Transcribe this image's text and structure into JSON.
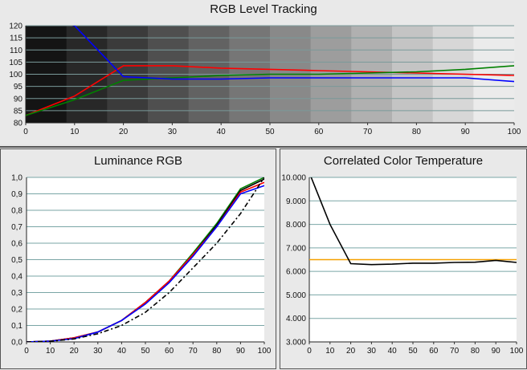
{
  "charts": {
    "top": {
      "title": "RGB Level Tracking",
      "chart_data": {
        "type": "line",
        "x": [
          0,
          10,
          20,
          30,
          40,
          50,
          60,
          70,
          80,
          90,
          100
        ],
        "xlim": [
          0,
          100
        ],
        "ylim": [
          80,
          120
        ],
        "x_ticks": [
          "0",
          "10",
          "20",
          "30",
          "40",
          "50",
          "60",
          "70",
          "80",
          "90",
          "100"
        ],
        "y_ticks": [
          "80",
          "85",
          "90",
          "95",
          "100",
          "105",
          "110",
          "115",
          "120"
        ],
        "grid": true,
        "background": "grayscale-steps",
        "series": [
          {
            "color": "#ff0000",
            "values": [
              83,
              91,
              103.5,
              103.5,
              102.5,
              102,
              101.5,
              101,
              100.5,
              100,
              99.5
            ]
          },
          {
            "color": "#008000",
            "values": [
              83,
              89.5,
              97.5,
              98.5,
              99.5,
              100,
              100,
              100.5,
              101,
              102,
              103.5
            ]
          },
          {
            "color": "#0000ff",
            "values": [
              125,
              120,
              99,
              98,
              98,
              98.5,
              98.5,
              98.5,
              98.5,
              98.5,
              97
            ]
          }
        ]
      }
    },
    "lum": {
      "title": "Luminance RGB",
      "chart_data": {
        "type": "line",
        "x": [
          0,
          10,
          20,
          30,
          40,
          50,
          60,
          70,
          80,
          90,
          100
        ],
        "xlim": [
          0,
          100
        ],
        "ylim": [
          0,
          1
        ],
        "x_ticks": [
          "0",
          "10",
          "20",
          "30",
          "40",
          "50",
          "60",
          "70",
          "80",
          "90",
          "100"
        ],
        "y_ticks": [
          "0,0",
          "0,1",
          "0,2",
          "0,3",
          "0,4",
          "0,5",
          "0,6",
          "0,7",
          "0,8",
          "0,9",
          "1,0"
        ],
        "grid": true,
        "series": [
          {
            "color": "#008000",
            "values": [
              0,
              0.005,
              0.025,
              0.06,
              0.13,
              0.24,
              0.37,
              0.54,
              0.72,
              0.93,
              1.0
            ]
          },
          {
            "color": "#000000",
            "values": [
              0,
              0.005,
              0.025,
              0.06,
              0.13,
              0.24,
              0.37,
              0.53,
              0.71,
              0.92,
              0.99
            ]
          },
          {
            "color": "#ff0000",
            "values": [
              0,
              0.005,
              0.025,
              0.06,
              0.13,
              0.24,
              0.37,
              0.53,
              0.7,
              0.91,
              0.97
            ]
          },
          {
            "color": "#0000ff",
            "values": [
              0,
              0.005,
              0.02,
              0.06,
              0.13,
              0.23,
              0.36,
              0.52,
              0.7,
              0.9,
              0.95
            ]
          },
          {
            "color": "#000000",
            "dash": "6,3,2,3",
            "values": [
              0,
              0.004,
              0.018,
              0.05,
              0.1,
              0.18,
              0.3,
              0.45,
              0.6,
              0.78,
              1.0
            ]
          }
        ]
      }
    },
    "cct": {
      "title": "Correlated Color Temperature",
      "chart_data": {
        "type": "line",
        "x": [
          0,
          10,
          20,
          30,
          40,
          50,
          60,
          70,
          80,
          90,
          100
        ],
        "xlim": [
          0,
          100
        ],
        "ylim": [
          3000,
          10000
        ],
        "x_ticks": [
          "0",
          "10",
          "20",
          "30",
          "40",
          "50",
          "60",
          "70",
          "80",
          "90",
          "100"
        ],
        "y_ticks": [
          "3.000",
          "4.000",
          "5.000",
          "6.000",
          "7.000",
          "8.000",
          "9.000",
          "10.000"
        ],
        "grid": true,
        "series": [
          {
            "color": "#f5a000",
            "values": [
              6500,
              6500,
              6500,
              6500,
              6500,
              6500,
              6500,
              6500,
              6500,
              6500,
              6500
            ]
          },
          {
            "color": "#000000",
            "values": [
              10200,
              8000,
              6330,
              6290,
              6310,
              6350,
              6350,
              6380,
              6390,
              6470,
              6380
            ]
          }
        ]
      }
    }
  }
}
